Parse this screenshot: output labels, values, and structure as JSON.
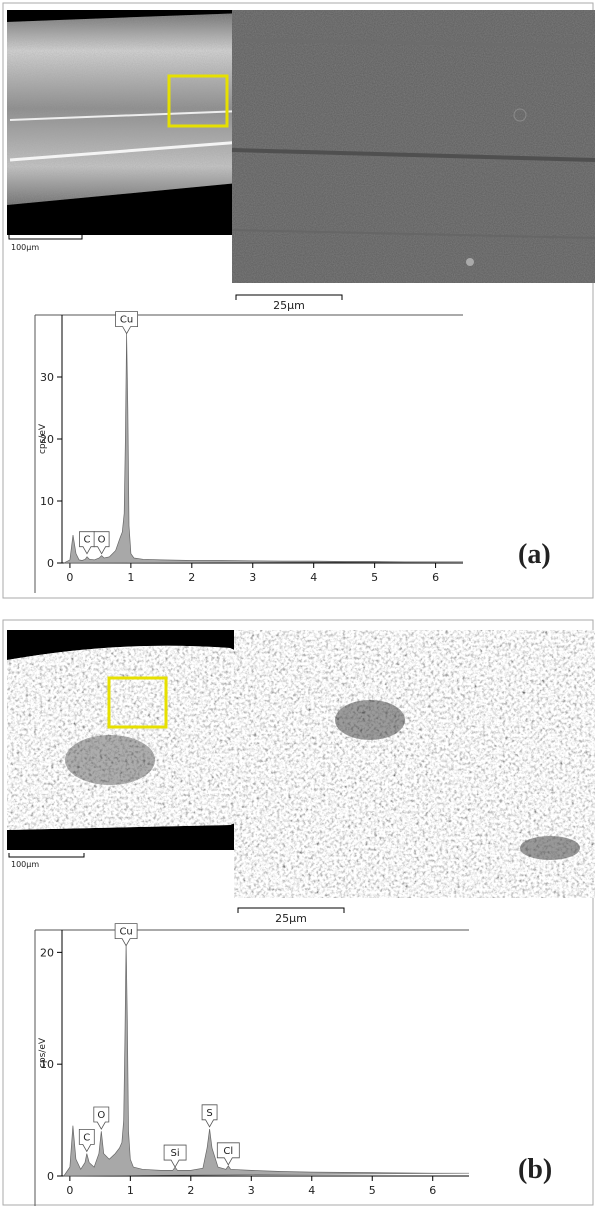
{
  "chart_data": [
    {
      "type": "area",
      "panel_label": "(a)",
      "image_scale_labels": [
        "100μm",
        "25μm"
      ],
      "ylabel": "cps/eV",
      "color": "#a8a8a8",
      "x": [
        -0.1,
        0,
        0.05,
        0.1,
        0.15,
        0.2,
        0.25,
        0.28,
        0.32,
        0.4,
        0.48,
        0.52,
        0.56,
        0.65,
        0.75,
        0.82,
        0.86,
        0.89,
        0.91,
        0.93,
        0.95,
        0.97,
        1.0,
        1.05,
        1.2,
        1.5,
        2,
        2.5,
        3,
        3.5,
        4,
        4.5,
        5,
        5.5,
        6,
        6.45
      ],
      "values": [
        0,
        0.5,
        4.5,
        1.5,
        0.5,
        0.4,
        0.6,
        1.0,
        0.6,
        0.5,
        0.8,
        1.2,
        0.8,
        1.0,
        2,
        4,
        5,
        8,
        20,
        37,
        25,
        6,
        1.5,
        0.8,
        0.6,
        0.5,
        0.4,
        0.4,
        0.35,
        0.3,
        0.3,
        0.25,
        0.25,
        0.2,
        0.2,
        0.2
      ],
      "peaks": [
        {
          "label": "C",
          "x": 0.28,
          "y": 1.5
        },
        {
          "label": "O",
          "x": 0.52,
          "y": 1.5
        },
        {
          "label": "Cu",
          "x": 0.93,
          "y": 37
        }
      ],
      "xlim": [
        -0.13,
        6.45
      ],
      "ylim": [
        0,
        40
      ],
      "xticks": [
        0,
        1,
        2,
        3,
        4,
        5,
        6
      ],
      "yticks": [
        0,
        10,
        20,
        30
      ]
    },
    {
      "type": "area",
      "panel_label": "(b)",
      "image_scale_labels": [
        "100μm",
        "25μm"
      ],
      "ylabel": "cps/eV",
      "color": "#a8a8a8",
      "x": [
        -0.1,
        0,
        0.05,
        0.1,
        0.18,
        0.25,
        0.28,
        0.32,
        0.4,
        0.48,
        0.52,
        0.56,
        0.65,
        0.75,
        0.82,
        0.86,
        0.89,
        0.91,
        0.93,
        0.95,
        0.97,
        1.0,
        1.05,
        1.2,
        1.5,
        1.7,
        1.74,
        1.78,
        2.0,
        2.2,
        2.27,
        2.31,
        2.35,
        2.45,
        2.58,
        2.62,
        2.66,
        3,
        3.5,
        4,
        5,
        6,
        6.6
      ],
      "values": [
        0,
        0.8,
        4.5,
        1.5,
        0.6,
        1.2,
        2.0,
        1.2,
        0.8,
        2,
        4,
        2,
        1.5,
        2,
        2.5,
        3,
        5,
        12,
        21,
        14,
        4,
        1.5,
        0.8,
        0.6,
        0.5,
        0.5,
        0.8,
        0.5,
        0.5,
        0.7,
        2.5,
        4.2,
        2.5,
        0.8,
        0.6,
        0.9,
        0.6,
        0.5,
        0.4,
        0.35,
        0.3,
        0.25,
        0.25
      ],
      "peaks": [
        {
          "label": "C",
          "x": 0.28,
          "y": 2.2
        },
        {
          "label": "O",
          "x": 0.52,
          "y": 4.2
        },
        {
          "label": "Cu",
          "x": 0.93,
          "y": 20.6
        },
        {
          "label": "Si",
          "x": 1.74,
          "y": 0.8
        },
        {
          "label": "S",
          "x": 2.31,
          "y": 4.4
        },
        {
          "label": "Cl",
          "x": 2.62,
          "y": 1.0
        }
      ],
      "xlim": [
        -0.13,
        6.6
      ],
      "ylim": [
        0,
        22
      ],
      "xticks": [
        0,
        1,
        2,
        3,
        4,
        5,
        6
      ],
      "yticks": [
        0,
        10,
        20
      ]
    }
  ]
}
